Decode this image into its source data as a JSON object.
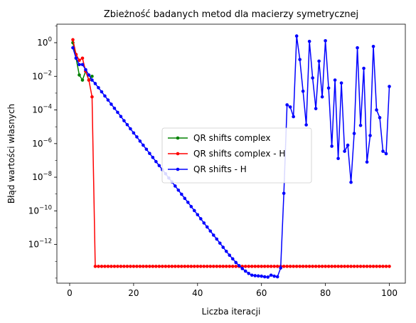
{
  "chart_data": {
    "type": "line",
    "title": "Zbieżność badanych metod dla macierzy symetrycznej",
    "xlabel": "Liczba iteracji",
    "ylabel": "Błąd wartości własnych",
    "xlim": [
      -4,
      105
    ],
    "ylim_log10": [
      -14.3,
      1.1
    ],
    "yscale": "log",
    "grid": false,
    "legend_position": "center",
    "x_ticks": [
      {
        "value": 0,
        "label": "0"
      },
      {
        "value": 20,
        "label": "20"
      },
      {
        "value": 40,
        "label": "40"
      },
      {
        "value": 60,
        "label": "60"
      },
      {
        "value": 80,
        "label": "80"
      },
      {
        "value": 100,
        "label": "100"
      }
    ],
    "y_ticks": [
      {
        "exp": 0,
        "base": "10",
        "sup": "0"
      },
      {
        "exp": -2,
        "base": "10",
        "sup": "−2"
      },
      {
        "exp": -4,
        "base": "10",
        "sup": "−4"
      },
      {
        "exp": -6,
        "base": "10",
        "sup": "−6"
      },
      {
        "exp": -8,
        "base": "10",
        "sup": "−8"
      },
      {
        "exp": -10,
        "base": "10",
        "sup": "−10"
      },
      {
        "exp": -12,
        "base": "10",
        "sup": "−12"
      }
    ],
    "series": [
      {
        "name": "QR shifts complex",
        "color": "#008000",
        "x": [
          1,
          2,
          3,
          4,
          5,
          6,
          7
        ],
        "y": [
          1.0,
          0.12,
          0.012,
          0.006,
          0.02,
          0.006,
          0.01
        ]
      },
      {
        "name": "QR shifts complex - H",
        "color": "#ff0000",
        "x": [
          1,
          2,
          3,
          4,
          5,
          6,
          7,
          8,
          9,
          10,
          11,
          12,
          13,
          14,
          15,
          16,
          17,
          18,
          19,
          20,
          21,
          22,
          23,
          24,
          25,
          26,
          27,
          28,
          29,
          30,
          31,
          32,
          33,
          34,
          35,
          36,
          37,
          38,
          39,
          40,
          41,
          42,
          43,
          44,
          45,
          46,
          47,
          48,
          49,
          50,
          51,
          52,
          53,
          54,
          55,
          56,
          57,
          58,
          59,
          60,
          61,
          62,
          63,
          64,
          65,
          66,
          67,
          68,
          69,
          70,
          71,
          72,
          73,
          74,
          75,
          76,
          77,
          78,
          79,
          80,
          81,
          82,
          83,
          84,
          85,
          86,
          87,
          88,
          89,
          90,
          91,
          92,
          93,
          94,
          95,
          96,
          97,
          98,
          99,
          100
        ],
        "y": [
          1.5,
          0.2,
          0.09,
          0.12,
          0.02,
          0.006,
          0.0006,
          5e-14,
          5e-14,
          5e-14,
          5e-14,
          5e-14,
          5e-14,
          5e-14,
          5e-14,
          5e-14,
          5e-14,
          5e-14,
          5e-14,
          5e-14,
          5e-14,
          5e-14,
          5e-14,
          5e-14,
          5e-14,
          5e-14,
          5e-14,
          5e-14,
          5e-14,
          5e-14,
          5e-14,
          5e-14,
          5e-14,
          5e-14,
          5e-14,
          5e-14,
          5e-14,
          5e-14,
          5e-14,
          5e-14,
          5e-14,
          5e-14,
          5e-14,
          5e-14,
          5e-14,
          5e-14,
          5e-14,
          5e-14,
          5e-14,
          5e-14,
          5e-14,
          5e-14,
          5e-14,
          5e-14,
          5e-14,
          5e-14,
          5e-14,
          5e-14,
          5e-14,
          5e-14,
          5e-14,
          5e-14,
          5e-14,
          5e-14,
          5e-14,
          5e-14,
          5e-14,
          5e-14,
          5e-14,
          5e-14,
          5e-14,
          5e-14,
          5e-14,
          5e-14,
          5e-14,
          5e-14,
          5e-14,
          5e-14,
          5e-14,
          5e-14,
          5e-14,
          5e-14,
          5e-14,
          5e-14,
          5e-14,
          5e-14,
          5e-14,
          5e-14,
          5e-14,
          5e-14,
          5e-14,
          5e-14,
          5e-14,
          5e-14,
          5e-14,
          5e-14,
          5e-14,
          5e-14,
          5e-14,
          5e-14
        ]
      },
      {
        "name": "QR shifts - H",
        "color": "#0000ff",
        "x": [
          1,
          2,
          3,
          4,
          5,
          6,
          7,
          8,
          9,
          10,
          11,
          12,
          13,
          14,
          15,
          16,
          17,
          18,
          19,
          20,
          21,
          22,
          23,
          24,
          25,
          26,
          27,
          28,
          29,
          30,
          31,
          32,
          33,
          34,
          35,
          36,
          37,
          38,
          39,
          40,
          41,
          42,
          43,
          44,
          45,
          46,
          47,
          48,
          49,
          50,
          51,
          52,
          53,
          54,
          55,
          56,
          57,
          58,
          59,
          60,
          61,
          62,
          63,
          64,
          65,
          66,
          67,
          68,
          69,
          70,
          71,
          72,
          73,
          74,
          75,
          76,
          77,
          78,
          79,
          80,
          81,
          82,
          83,
          84,
          85,
          86,
          87,
          88,
          89,
          90,
          91,
          92,
          93,
          94,
          95,
          96,
          97,
          98,
          99,
          100
        ],
        "y": [
          0.5,
          0.12,
          0.05,
          0.05,
          0.025,
          0.012,
          0.006,
          0.0037,
          0.0021,
          0.0012,
          0.00068,
          0.00039,
          0.00022,
          0.000126,
          7.2e-05,
          4.1e-05,
          2.3e-05,
          1.33e-05,
          7.6e-06,
          4.3e-06,
          2.5e-06,
          1.4e-06,
          8e-07,
          4.6e-07,
          2.6e-07,
          1.5e-07,
          8.5e-08,
          4.9e-08,
          2.8e-08,
          1.6e-08,
          9e-09,
          5.2e-09,
          3e-09,
          1.7e-09,
          9.7e-10,
          5.5e-10,
          3.2e-10,
          1.8e-10,
          1.04e-10,
          5.9e-11,
          3.4e-11,
          1.9e-11,
          1.1e-11,
          6.3e-12,
          3.6e-12,
          2.1e-12,
          1.2e-12,
          6.8e-13,
          3.9e-13,
          2.3e-13,
          1.4e-13,
          8.5e-14,
          5.5e-14,
          3.7e-14,
          2.6e-14,
          1.9e-14,
          1.5e-14,
          1.4e-14,
          1.35e-14,
          1.3e-14,
          1.2e-14,
          1.15e-14,
          1.5e-14,
          1.3e-14,
          1.2e-14,
          4e-14,
          1.1e-09,
          0.0002,
          0.00015,
          4e-05,
          2.5,
          0.1,
          0.0013,
          1.3e-05,
          1.2,
          0.008,
          0.00012,
          0.08,
          0.0006,
          1.3,
          0.002,
          7e-07,
          0.006,
          1.3e-07,
          0.004,
          3.5e-07,
          8e-07,
          5e-09,
          4e-06,
          0.5,
          1.2e-05,
          0.03,
          8e-08,
          3e-06,
          0.6,
          0.0001,
          3.5e-05,
          3.5e-07,
          2.5e-07,
          0.0025
        ]
      }
    ]
  }
}
